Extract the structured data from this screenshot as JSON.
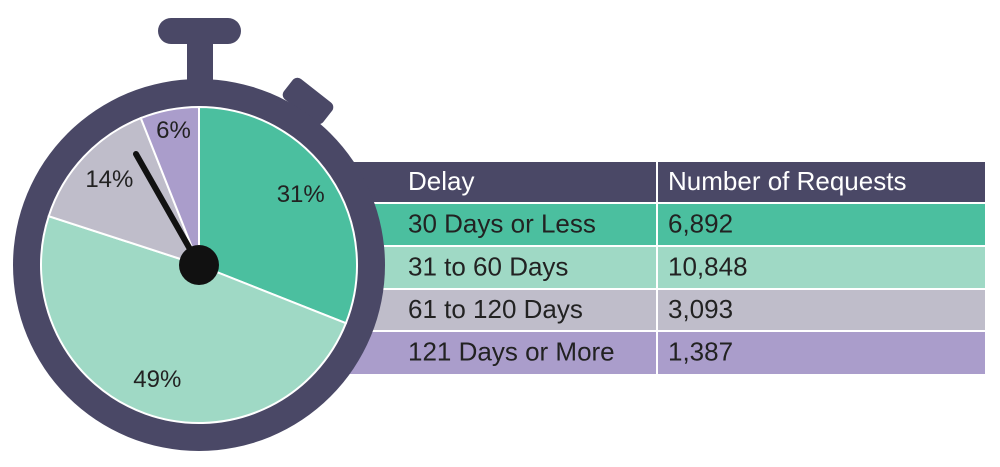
{
  "chart_data": {
    "type": "pie",
    "categories": [
      "30 Days or Less",
      "31 to 60 Days",
      "61 to 120 Days",
      "121 Days or More"
    ],
    "values": [
      31,
      49,
      14,
      6
    ],
    "value_labels": [
      "31%",
      "49%",
      "14%",
      "6%"
    ],
    "colors": [
      "#4bbf9f",
      "#9fd9c5",
      "#bfbdca",
      "#aa9dcb"
    ]
  },
  "table": {
    "columns": [
      "Delay",
      "Number of Requests"
    ],
    "requests": [
      "6,892",
      "10,848",
      "3,093",
      "1,387"
    ]
  }
}
